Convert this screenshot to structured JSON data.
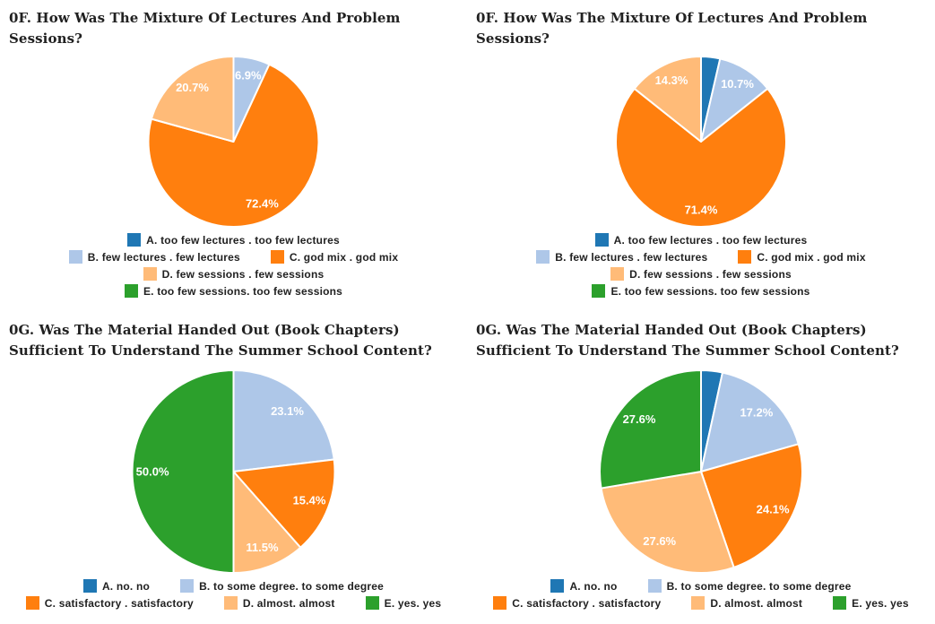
{
  "page": {
    "background": "#ffffff",
    "title_color": "#212121",
    "legend_text_color": "#212121",
    "slice_label_color": "#ffffff",
    "slice_stroke_color": "#ffffff"
  },
  "chart_data": [
    {
      "type": "pie",
      "title": "0F. How Was The Mixture Of Lectures And Problem Sessions?",
      "legend_position": "bottom",
      "legend_rows": [
        [
          0
        ],
        [
          1,
          2
        ],
        [
          3
        ],
        [
          4
        ]
      ],
      "slices": [
        {
          "label": "A. too few lectures . too few lectures",
          "value": 0,
          "pct_label": "",
          "color": "#1f77b4"
        },
        {
          "label": "B. few lectures . few lectures",
          "value": 6.9,
          "pct_label": "6.9%",
          "color": "#aec7e8"
        },
        {
          "label": "C. god mix . god mix",
          "value": 72.4,
          "pct_label": "72.4%",
          "color": "#ff7f0e"
        },
        {
          "label": "D. few sessions . few sessions",
          "value": 20.7,
          "pct_label": "20.7%",
          "color": "#ffbb78"
        },
        {
          "label": "E. too few sessions. too few sessions",
          "value": 0,
          "pct_label": "",
          "color": "#2ca02c"
        }
      ]
    },
    {
      "type": "pie",
      "title": "0F. How Was The Mixture Of Lectures And Problem Sessions?",
      "legend_position": "bottom",
      "legend_rows": [
        [
          0
        ],
        [
          1,
          2
        ],
        [
          3
        ],
        [
          4
        ]
      ],
      "slices": [
        {
          "label": "A. too few lectures . too few lectures",
          "value": 3.6,
          "pct_label": "",
          "color": "#1f77b4"
        },
        {
          "label": "B. few lectures . few lectures",
          "value": 10.7,
          "pct_label": "10.7%",
          "color": "#aec7e8"
        },
        {
          "label": "C. god mix . god mix",
          "value": 71.4,
          "pct_label": "71.4%",
          "color": "#ff7f0e"
        },
        {
          "label": "D. few sessions . few sessions",
          "value": 14.3,
          "pct_label": "14.3%",
          "color": "#ffbb78"
        },
        {
          "label": "E. too few sessions. too few sessions",
          "value": 0,
          "pct_label": "",
          "color": "#2ca02c"
        }
      ]
    },
    {
      "type": "pie",
      "title": "0G. Was The Material Handed Out (Book Chapters) Sufficient To Understand The Summer School Content?",
      "legend_position": "bottom",
      "legend_rows": [
        [
          0,
          1
        ],
        [
          2,
          3,
          4
        ]
      ],
      "slices": [
        {
          "label": "A. no. no",
          "value": 0,
          "pct_label": "",
          "color": "#1f77b4"
        },
        {
          "label": "B. to some degree. to some degree",
          "value": 23.1,
          "pct_label": "23.1%",
          "color": "#aec7e8"
        },
        {
          "label": "C. satisfactory . satisfactory",
          "value": 15.4,
          "pct_label": "15.4%",
          "color": "#ff7f0e"
        },
        {
          "label": "D. almost. almost",
          "value": 11.5,
          "pct_label": "11.5%",
          "color": "#ffbb78"
        },
        {
          "label": "E. yes. yes",
          "value": 50.0,
          "pct_label": "50.0%",
          "color": "#2ca02c"
        }
      ]
    },
    {
      "type": "pie",
      "title": "0G. Was The Material Handed Out (Book Chapters) Sufficient To Understand The Summer School Content?",
      "legend_position": "bottom",
      "legend_rows": [
        [
          0,
          1
        ],
        [
          2,
          3,
          4
        ]
      ],
      "slices": [
        {
          "label": "A. no. no",
          "value": 3.4,
          "pct_label": "",
          "color": "#1f77b4"
        },
        {
          "label": "B. to some degree. to some degree",
          "value": 17.2,
          "pct_label": "17.2%",
          "color": "#aec7e8"
        },
        {
          "label": "C. satisfactory . satisfactory",
          "value": 24.1,
          "pct_label": "24.1%",
          "color": "#ff7f0e"
        },
        {
          "label": "D. almost. almost",
          "value": 27.6,
          "pct_label": "27.6%",
          "color": "#ffbb78"
        },
        {
          "label": "E. yes. yes",
          "value": 27.6,
          "pct_label": "27.6%",
          "color": "#2ca02c"
        }
      ]
    }
  ]
}
